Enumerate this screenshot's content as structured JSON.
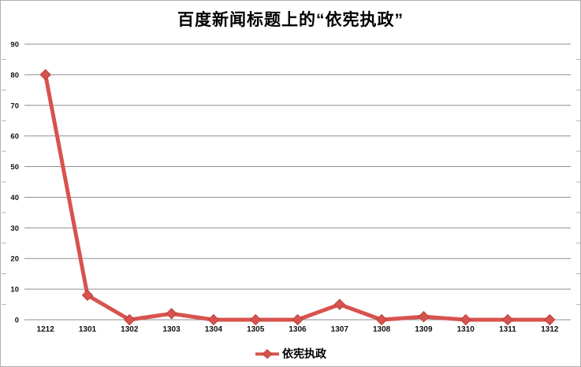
{
  "window": {
    "background": "#ffffff",
    "border_color": "#b0b0b0"
  },
  "chart_data": {
    "type": "line",
    "title": "百度新闻标题上的“依宪执政”",
    "categories": [
      "1212",
      "1301",
      "1302",
      "1303",
      "1304",
      "1305",
      "1306",
      "1307",
      "1308",
      "1309",
      "1310",
      "1311",
      "1312"
    ],
    "series": [
      {
        "name": "依宪执政",
        "values": [
          80,
          8,
          0,
          2,
          0,
          0,
          0,
          5,
          0,
          1,
          0,
          0,
          0
        ],
        "color": "#d8534e",
        "marker": "diamond",
        "marker_border_color": "#b8423d"
      }
    ],
    "ylim": [
      0,
      90
    ],
    "ytick_step": 10,
    "yticks": [
      0,
      10,
      20,
      30,
      40,
      50,
      60,
      70,
      80,
      90
    ],
    "grid": true,
    "gridline_color": "#8f8f8f",
    "tick_color": "#b3b3b3",
    "axis_text_color": "#111111",
    "legend_position": "bottom",
    "xlabel": "",
    "ylabel": ""
  }
}
